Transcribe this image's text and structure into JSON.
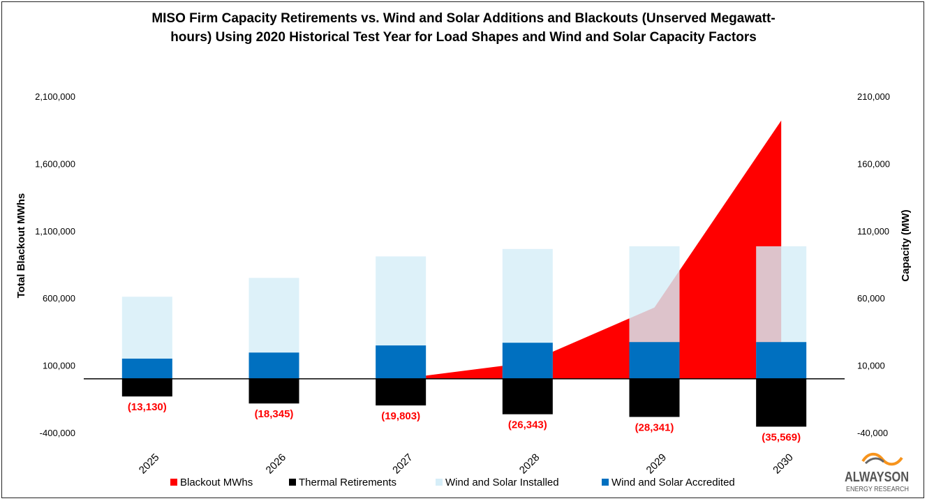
{
  "chart_data": {
    "type": "bar",
    "title_lines": [
      "MISO Firm Capacity Retirements vs. Wind and Solar Additions and Blackouts (Unserved Megawatt-",
      "hours) Using 2020 Historical Test Year for Load Shapes and Wind and Solar Capacity Factors"
    ],
    "categories": [
      "2025",
      "2026",
      "2027",
      "2028",
      "2029",
      "2030"
    ],
    "ylabel_left": "Total Blackout MWhs",
    "ylabel_right": "Capacity (MW)",
    "left_axis": {
      "min": -400000,
      "max": 2100000,
      "ticks": [
        -400000,
        100000,
        600000,
        1100000,
        1600000,
        2100000
      ],
      "tick_labels": [
        "-400,000",
        "100,000",
        "600,000",
        "1,100,000",
        "1,600,000",
        "2,100,000"
      ]
    },
    "right_axis": {
      "min": -40000,
      "max": 210000,
      "ticks": [
        -40000,
        10000,
        60000,
        110000,
        160000,
        210000
      ],
      "tick_labels": [
        "-40,000",
        "10,000",
        "60,000",
        "110,000",
        "160,000",
        "210,000"
      ]
    },
    "series": [
      {
        "name": "Blackout MWhs",
        "type": "area",
        "axis": "left",
        "color": "#ff0000",
        "values": [
          0,
          0,
          0,
          120000,
          530000,
          1920000
        ]
      },
      {
        "name": "Thermal Retirements",
        "type": "bar",
        "axis": "right",
        "color": "#000000",
        "values": [
          -13130,
          -18345,
          -19803,
          -26343,
          -28341,
          -35569
        ]
      },
      {
        "name": "Wind and Solar Installed",
        "type": "bar",
        "axis": "right",
        "color": "#d6eef8",
        "values": [
          61000,
          75000,
          91000,
          96500,
          98500,
          98500
        ]
      },
      {
        "name": "Wind and Solar Accredited",
        "type": "bar",
        "axis": "right",
        "color": "#0070c0",
        "values": [
          15000,
          19500,
          24800,
          26800,
          27300,
          27300
        ]
      }
    ],
    "data_labels": [
      "(13,130)",
      "(18,345)",
      "(19,803)",
      "(26,343)",
      "(28,341)",
      "(35,569)"
    ],
    "legend_position": "bottom",
    "grid": false
  },
  "logo": {
    "brand": "ALWAYSON",
    "sub": "ENERGY RESEARCH",
    "colors": [
      "#555555",
      "#f7941d"
    ]
  }
}
